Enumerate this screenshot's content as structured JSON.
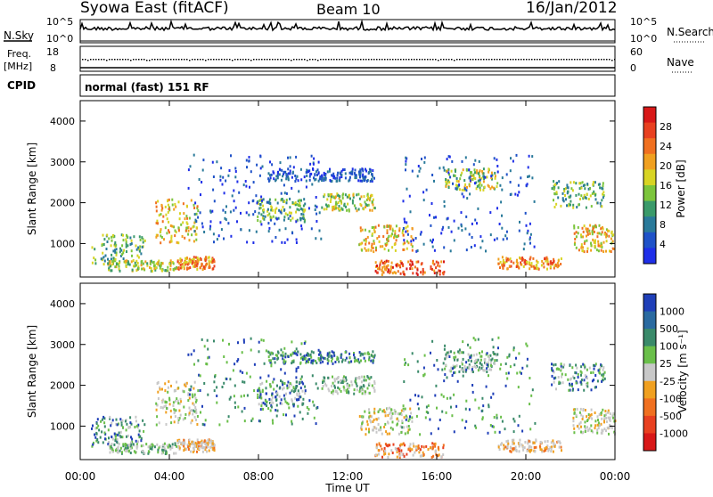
{
  "header": {
    "title": "Syowa East (fitACF)",
    "beam": "Beam 10",
    "date": "16/Jan/2012"
  },
  "nsky_panel": {
    "left_label": "N.Sky",
    "right_label": "N.Search",
    "left_tick_top": "10^5",
    "left_tick_bottom": "10^0",
    "right_tick_top": "10^5",
    "right_tick_bottom": "10^0"
  },
  "freq_panel": {
    "left_label_1": "Freq.",
    "left_label_2": "[MHz]",
    "right_label": "Nave",
    "left_tick_top": "18",
    "left_tick_bottom": "8",
    "right_tick_top": "60",
    "right_tick_bottom": "0"
  },
  "cpid_panel": {
    "label": "CPID",
    "mode": "normal (fast) 151 RF"
  },
  "chart_data": [
    {
      "type": "heatmap",
      "name": "power",
      "ylabel": "Slant Range [km]",
      "yticks": [
        "1000",
        "2000",
        "3000",
        "4000"
      ],
      "ylim": [
        180,
        4500
      ],
      "xlim_hours": [
        0,
        24
      ],
      "colorbar_label": "Power [dB]",
      "colorbar_ticks": [
        "4",
        "8",
        "12",
        "16",
        "20",
        "24",
        "28"
      ],
      "colorbar_colors": [
        "#1f2fe8",
        "#1f52c8",
        "#2a7a9a",
        "#3a9a6a",
        "#7cc53c",
        "#d8d424",
        "#f0a020",
        "#f07020",
        "#e84020",
        "#d81818"
      ]
    },
    {
      "type": "heatmap",
      "name": "velocity",
      "ylabel": "Slant Range [km]",
      "yticks": [
        "1000",
        "2000",
        "3000",
        "4000"
      ],
      "ylim": [
        180,
        4500
      ],
      "xlim_hours": [
        0,
        24
      ],
      "colorbar_label": "Velocity [m s⁻¹]",
      "colorbar_ticks": [
        "1000",
        "500",
        "100",
        "25",
        "-25",
        "-100",
        "-500",
        "-1000"
      ],
      "colorbar_colors": [
        "#1f3fb8",
        "#2a6aa0",
        "#3a8a6a",
        "#6abf4a",
        "#c8c8c8",
        "#f0a020",
        "#f07020",
        "#e84020",
        "#d81818"
      ]
    }
  ],
  "xaxis": {
    "label": "Time UT",
    "ticks": [
      "00:00",
      "04:00",
      "08:00",
      "12:00",
      "16:00",
      "20:00",
      "00:00"
    ]
  }
}
